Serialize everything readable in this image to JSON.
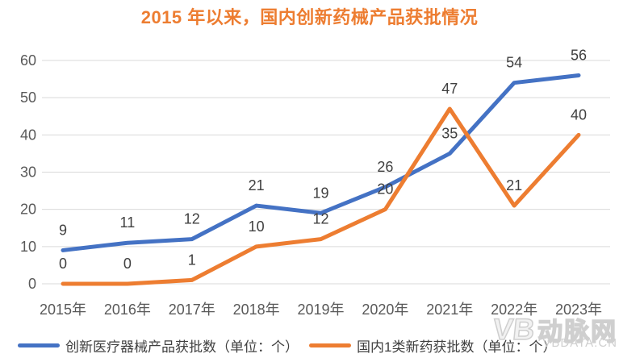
{
  "title": "2015 年以来，国内创新药械产品获批情况",
  "chart_data": {
    "type": "line",
    "title": "2015 年以来，国内创新药械产品获批情况",
    "categories": [
      "2015年",
      "2016年",
      "2017年",
      "2018年",
      "2019年",
      "2020年",
      "2021年",
      "2022年",
      "2023年"
    ],
    "series": [
      {
        "name": "创新医疗器械产品获批数（单位：个）",
        "color": "#4472C4",
        "values": [
          9,
          11,
          12,
          21,
          19,
          26,
          35,
          54,
          56
        ]
      },
      {
        "name": "国内1类新药获批数（单位：个）",
        "color": "#ED7D31",
        "values": [
          0,
          0,
          1,
          10,
          12,
          20,
          47,
          21,
          40
        ]
      }
    ],
    "y_ticks": [
      0,
      10,
      20,
      30,
      40,
      50,
      60
    ],
    "ylim": [
      0,
      60
    ],
    "grid": true,
    "data_labels": true,
    "legend_position": "bottom",
    "xlabel": "",
    "ylabel": ""
  },
  "colors": {
    "blue_series": "#4472C4",
    "orange_series": "#ED7D31",
    "title": "#ED7D31",
    "gridline": "#D9D9D9",
    "axis_text": "#595959",
    "data_label_text": "#404040",
    "watermark": "#CFCFCF"
  },
  "watermark": {
    "monogram": "VB",
    "logo": "动脉网",
    "domain": "VBDATA.CN"
  }
}
